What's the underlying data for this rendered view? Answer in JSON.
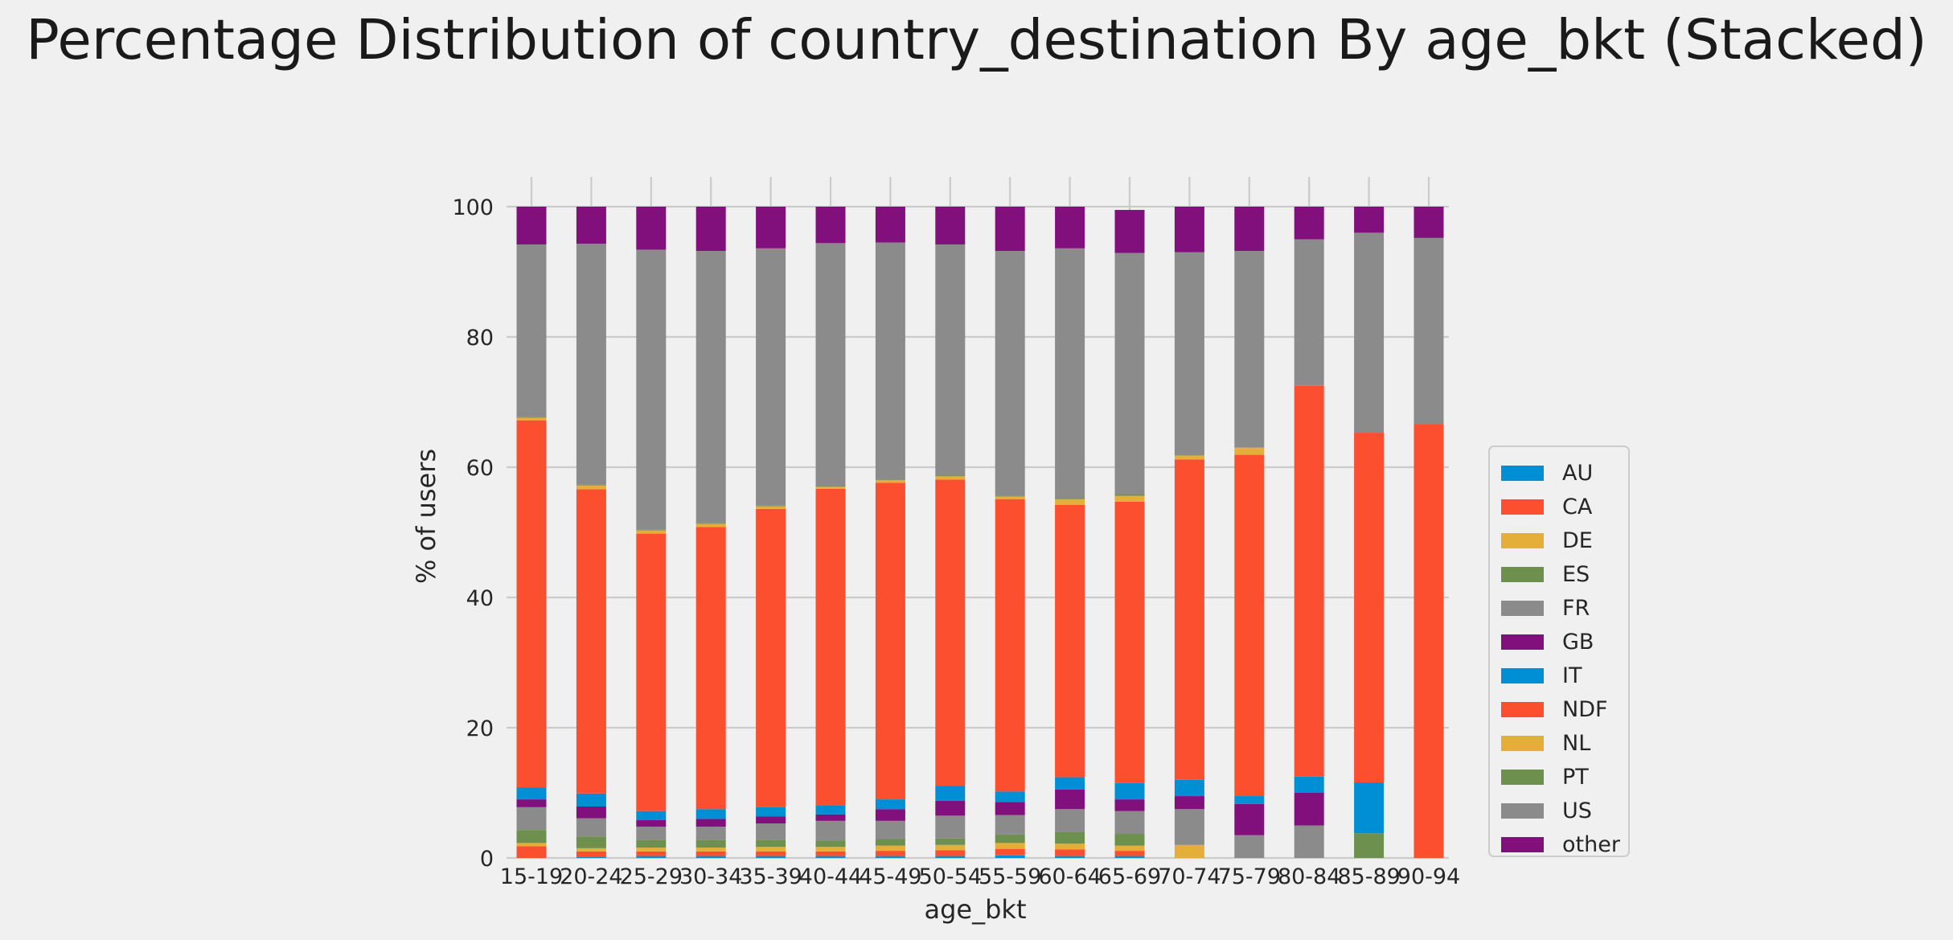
{
  "chart_data": {
    "type": "bar",
    "stacked": true,
    "title": "Percentage Distribution of country_destination By age_bkt (Stacked)",
    "xlabel": "age_bkt",
    "ylabel": "% of users",
    "ylim": [
      0,
      100
    ],
    "yticks": [
      0,
      20,
      40,
      60,
      80,
      100
    ],
    "grid": true,
    "legend_position": "right",
    "categories": [
      "15-19",
      "20-24",
      "25-29",
      "30-34",
      "35-39",
      "40-44",
      "45-49",
      "50-54",
      "55-59",
      "60-64",
      "65-69",
      "70-74",
      "75-79",
      "80-84",
      "85-89",
      "90-94"
    ],
    "series": [
      {
        "name": "AU",
        "color": "#008fd5",
        "values": [
          0.0,
          0.2,
          0.3,
          0.3,
          0.3,
          0.3,
          0.3,
          0.3,
          0.4,
          0.3,
          0.3,
          0.0,
          0.0,
          0.0,
          0.0,
          0.0
        ]
      },
      {
        "name": "CA",
        "color": "#fc4f30",
        "values": [
          1.8,
          0.8,
          0.7,
          0.7,
          0.7,
          0.7,
          0.8,
          0.9,
          1.0,
          1.0,
          0.8,
          0.0,
          0.0,
          0.0,
          0.0,
          0.8
        ]
      },
      {
        "name": "DE",
        "color": "#e5ae38",
        "values": [
          0.5,
          0.5,
          0.6,
          0.6,
          0.7,
          0.7,
          0.8,
          0.8,
          0.9,
          0.9,
          0.8,
          2.0,
          0.0,
          0.0,
          0.0,
          0.0
        ]
      },
      {
        "name": "ES",
        "color": "#6d904f",
        "values": [
          2.0,
          1.8,
          1.2,
          1.2,
          1.1,
          1.0,
          1.0,
          1.0,
          1.3,
          1.8,
          1.8,
          0.0,
          0.0,
          0.0,
          3.8,
          0.0
        ]
      },
      {
        "name": "FR",
        "color": "#8b8b8b",
        "values": [
          3.5,
          2.8,
          2.0,
          2.0,
          2.5,
          3.0,
          2.8,
          3.5,
          3.0,
          3.5,
          3.5,
          5.5,
          3.5,
          5.0,
          0.0,
          0.0
        ]
      },
      {
        "name": "GB",
        "color": "#810f7c",
        "values": [
          1.2,
          1.8,
          1.0,
          1.2,
          1.1,
          1.0,
          1.8,
          2.3,
          2.0,
          3.0,
          1.8,
          2.0,
          4.8,
          5.0,
          0.0,
          0.0
        ]
      },
      {
        "name": "IT",
        "color": "#008fd5",
        "values": [
          1.8,
          2.0,
          1.4,
          1.5,
          1.4,
          1.4,
          1.5,
          2.3,
          1.6,
          1.9,
          2.5,
          2.5,
          1.2,
          2.5,
          7.8,
          0.0
        ]
      },
      {
        "name": "NDF",
        "color": "#fc4f30",
        "values": [
          56.4,
          46.7,
          42.6,
          43.3,
          45.8,
          48.6,
          48.6,
          47.0,
          44.9,
          41.8,
          43.2,
          49.2,
          52.4,
          60.0,
          53.7,
          65.8
        ]
      },
      {
        "name": "NL",
        "color": "#e5ae38",
        "values": [
          0.4,
          0.6,
          0.5,
          0.5,
          0.4,
          0.3,
          0.4,
          0.5,
          0.4,
          0.9,
          0.9,
          0.6,
          1.1,
          0.0,
          0.0,
          0.0
        ]
      },
      {
        "name": "PT",
        "color": "#6d904f",
        "values": [
          0.1,
          0.1,
          0.1,
          0.1,
          0.1,
          0.1,
          0.1,
          0.1,
          0.1,
          0.2,
          0.2,
          0.1,
          0.0,
          0.0,
          0.0,
          0.0
        ]
      },
      {
        "name": "US",
        "color": "#8b8b8b",
        "values": [
          26.5,
          37.0,
          43.0,
          41.8,
          39.5,
          37.3,
          36.4,
          35.5,
          37.6,
          38.3,
          37.1,
          31.1,
          30.2,
          22.5,
          30.7,
          28.6
        ]
      },
      {
        "name": "other",
        "color": "#810f7c",
        "values": [
          5.8,
          5.7,
          6.6,
          6.8,
          6.4,
          5.6,
          5.5,
          5.8,
          6.8,
          6.4,
          6.6,
          7.0,
          6.8,
          5.0,
          4.0,
          4.8
        ]
      }
    ]
  }
}
